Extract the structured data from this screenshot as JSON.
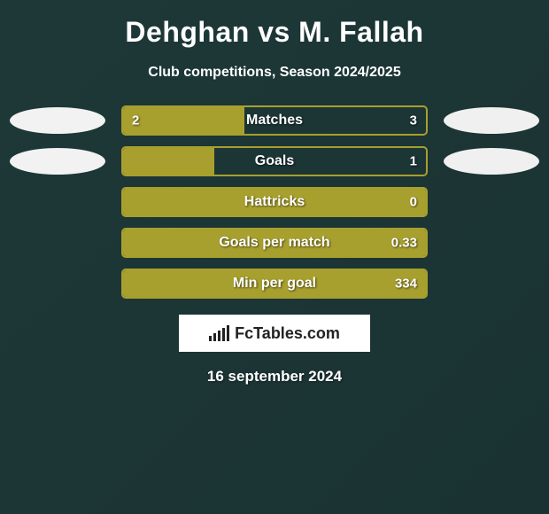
{
  "title": "Dehghan vs M. Fallah",
  "subtitle": "Club competitions, Season 2024/2025",
  "bar_border_color": "#a8a02e",
  "bar_fill_color": "#a8a02e",
  "ellipse_left_color": "#f2f2f2",
  "ellipse_right_color": "#f0f0f0",
  "rows": [
    {
      "label": "Matches",
      "left": "2",
      "right": "3",
      "fill_pct": 40,
      "show_ellipse": true
    },
    {
      "label": "Goals",
      "left": "",
      "right": "1",
      "fill_pct": 30,
      "show_ellipse": true
    },
    {
      "label": "Hattricks",
      "left": "",
      "right": "0",
      "fill_pct": 100,
      "show_ellipse": false
    },
    {
      "label": "Goals per match",
      "left": "",
      "right": "0.33",
      "fill_pct": 100,
      "show_ellipse": false
    },
    {
      "label": "Min per goal",
      "left": "",
      "right": "334",
      "fill_pct": 100,
      "show_ellipse": false
    }
  ],
  "footer_brand": "FcTables.com",
  "footer_date": "16 september 2024",
  "logo_bar_heights": [
    6,
    9,
    12,
    15,
    18
  ]
}
